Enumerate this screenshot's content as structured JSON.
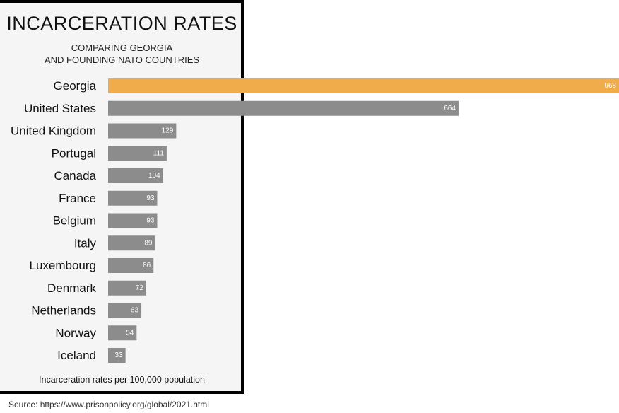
{
  "title": "INCARCERATION RATES",
  "subtitle_line1": "COMPARING GEORGIA",
  "subtitle_line2": "AND FOUNDING NATO COUNTRIES",
  "footnote": "Incarceration rates per 100,000 population",
  "source": "Source: https://www.prisonpolicy.org/global/2021.html",
  "colors": {
    "highlight": "#f0ab4b",
    "bar": "#8c8c8c",
    "panel": "#f5f5f5"
  },
  "chart_data": {
    "type": "bar",
    "orientation": "horizontal",
    "title": "INCARCERATION RATES",
    "subtitle": "COMPARING GEORGIA AND FOUNDING NATO COUNTRIES",
    "xlabel": "Incarceration rates per 100,000 population",
    "ylabel": "",
    "xlim": [
      0,
      968
    ],
    "grid": false,
    "highlight": "Georgia",
    "categories": [
      "Georgia",
      "United States",
      "United Kingdom",
      "Portugal",
      "Canada",
      "France",
      "Belgium",
      "Italy",
      "Luxembourg",
      "Denmark",
      "Netherlands",
      "Norway",
      "Iceland"
    ],
    "values": [
      968,
      664,
      129,
      111,
      104,
      93,
      93,
      89,
      86,
      72,
      63,
      54,
      33
    ]
  }
}
